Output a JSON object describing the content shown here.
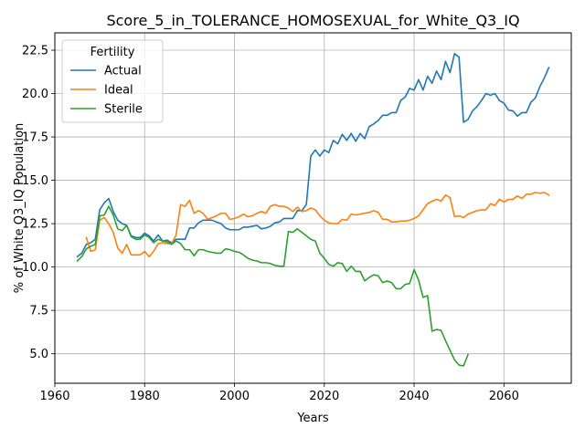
{
  "chart_data": {
    "type": "line",
    "title": "Score_5_in_TOLERANCE_HOMOSEXUAL_for_White_Q3_IQ",
    "xlabel": "Years",
    "ylabel": "% of White Q3_IQ Population",
    "xlim": [
      1960,
      2075
    ],
    "ylim": [
      3.3,
      23.5
    ],
    "xticks": [
      1960,
      1980,
      2000,
      2020,
      2040,
      2060
    ],
    "yticks": [
      5.0,
      7.5,
      10.0,
      12.5,
      15.0,
      17.5,
      20.0,
      22.5
    ],
    "grid": true,
    "legend": {
      "title": "Fertility",
      "location": "upper-left"
    },
    "series": [
      {
        "name": "Actual",
        "color": "#1f77b4",
        "x": [
          1965,
          1966,
          1967,
          1968,
          1969,
          1970,
          1971,
          1972,
          1973,
          1974,
          1975,
          1976,
          1977,
          1978,
          1979,
          1980,
          1981,
          1982,
          1983,
          1984,
          1985,
          1986,
          1987,
          1988,
          1989,
          1990,
          1991,
          1992,
          1993,
          1994,
          1995,
          1996,
          1997,
          1998,
          1999,
          2000,
          2001,
          2002,
          2003,
          2004,
          2005,
          2006,
          2007,
          2008,
          2009,
          2010,
          2011,
          2012,
          2013,
          2014,
          2015,
          2016,
          2017,
          2018,
          2019,
          2020,
          2021,
          2022,
          2023,
          2024,
          2025,
          2026,
          2027,
          2028,
          2029,
          2030,
          2031,
          2032,
          2033,
          2034,
          2035,
          2036,
          2037,
          2038,
          2039,
          2040,
          2041,
          2042,
          2043,
          2044,
          2045,
          2046,
          2047,
          2048,
          2049,
          2050,
          2051,
          2052,
          2053,
          2054,
          2055,
          2056,
          2057,
          2058,
          2059,
          2060,
          2061,
          2062,
          2063,
          2064,
          2065,
          2066,
          2067,
          2068,
          2069,
          2070
        ],
        "values": [
          10.6,
          10.8,
          11.3,
          11.4,
          11.6,
          13.3,
          13.7,
          13.95,
          13.2,
          12.7,
          12.5,
          12.4,
          11.8,
          11.7,
          11.7,
          11.95,
          11.8,
          11.5,
          11.85,
          11.5,
          11.55,
          11.4,
          11.6,
          11.6,
          11.6,
          12.25,
          12.25,
          12.55,
          12.7,
          12.7,
          12.7,
          12.6,
          12.5,
          12.25,
          12.15,
          12.15,
          12.15,
          12.3,
          12.3,
          12.35,
          12.4,
          12.2,
          12.25,
          12.35,
          12.55,
          12.6,
          12.8,
          12.8,
          12.8,
          13.25,
          13.25,
          13.6,
          16.4,
          16.75,
          16.4,
          16.75,
          16.6,
          17.3,
          17.1,
          17.65,
          17.3,
          17.7,
          17.25,
          17.7,
          17.4,
          18.1,
          18.25,
          18.45,
          18.75,
          18.75,
          18.9,
          18.9,
          19.6,
          19.8,
          20.3,
          20.2,
          20.8,
          20.2,
          21.0,
          20.6,
          21.3,
          20.8,
          21.85,
          21.2,
          22.3,
          22.1,
          18.35,
          18.5,
          19.0,
          19.25,
          19.6,
          20.0,
          19.9,
          20.0,
          19.6,
          19.45,
          19.05,
          19.0,
          18.7,
          18.9,
          18.9,
          19.5,
          19.75,
          20.4,
          20.9,
          21.5
        ]
      },
      {
        "name": "Ideal",
        "color": "#ff7f0e",
        "x": [
          1967,
          1968,
          1969,
          1970,
          1971,
          1972,
          1973,
          1974,
          1975,
          1976,
          1977,
          1978,
          1979,
          1980,
          1981,
          1982,
          1983,
          1984,
          1985,
          1986,
          1987,
          1988,
          1989,
          1990,
          1991,
          1992,
          1993,
          1994,
          1995,
          1996,
          1997,
          1998,
          1999,
          2000,
          2001,
          2002,
          2003,
          2004,
          2005,
          2006,
          2007,
          2008,
          2009,
          2010,
          2011,
          2012,
          2013,
          2014,
          2015,
          2016,
          2017,
          2018,
          2019,
          2020,
          2021,
          2022,
          2023,
          2024,
          2025,
          2026,
          2027,
          2028,
          2029,
          2030,
          2031,
          2032,
          2033,
          2034,
          2035,
          2036,
          2037,
          2038,
          2039,
          2040,
          2041,
          2042,
          2043,
          2044,
          2045,
          2046,
          2047,
          2048,
          2049,
          2050,
          2051,
          2052,
          2053,
          2054,
          2055,
          2056,
          2057,
          2058,
          2059,
          2060,
          2061,
          2062,
          2063,
          2064,
          2065,
          2066,
          2067,
          2068,
          2069,
          2070
        ],
        "values": [
          11.7,
          10.9,
          11.0,
          12.7,
          12.85,
          12.5,
          12.0,
          11.1,
          10.8,
          11.3,
          10.7,
          10.7,
          10.7,
          10.9,
          10.6,
          10.9,
          11.35,
          11.4,
          11.35,
          11.35,
          11.85,
          13.6,
          13.5,
          13.85,
          13.1,
          13.25,
          13.1,
          12.75,
          12.85,
          12.95,
          13.1,
          13.1,
          12.75,
          12.8,
          12.9,
          13.05,
          12.9,
          12.95,
          13.1,
          13.2,
          13.1,
          13.5,
          13.6,
          13.5,
          13.5,
          13.4,
          13.2,
          13.45,
          13.2,
          13.25,
          13.4,
          13.3,
          12.95,
          12.7,
          12.55,
          12.5,
          12.5,
          12.75,
          12.7,
          13.05,
          13.0,
          13.05,
          13.1,
          13.15,
          13.25,
          13.15,
          12.75,
          12.75,
          12.6,
          12.6,
          12.65,
          12.65,
          12.7,
          12.8,
          12.95,
          13.3,
          13.65,
          13.8,
          13.9,
          13.8,
          14.15,
          14.0,
          12.9,
          12.95,
          12.85,
          13.05,
          13.15,
          13.25,
          13.3,
          13.3,
          13.65,
          13.55,
          13.9,
          13.75,
          13.9,
          13.9,
          14.1,
          13.95,
          14.2,
          14.2,
          14.3,
          14.25,
          14.3,
          14.15
        ]
      },
      {
        "name": "Sterile",
        "color": "#2ca02c",
        "x": [
          1965,
          1966,
          1967,
          1968,
          1969,
          1970,
          1971,
          1972,
          1973,
          1974,
          1975,
          1976,
          1977,
          1978,
          1979,
          1980,
          1981,
          1982,
          1983,
          1984,
          1985,
          1986,
          1987,
          1988,
          1989,
          1990,
          1991,
          1992,
          1993,
          1994,
          1995,
          1996,
          1997,
          1998,
          1999,
          2000,
          2001,
          2002,
          2003,
          2004,
          2005,
          2006,
          2007,
          2008,
          2009,
          2010,
          2011,
          2012,
          2013,
          2014,
          2015,
          2016,
          2017,
          2018,
          2019,
          2020,
          2021,
          2022,
          2023,
          2024,
          2025,
          2026,
          2027,
          2028,
          2029,
          2030,
          2031,
          2032,
          2033,
          2034,
          2035,
          2036,
          2037,
          2038,
          2039,
          2040,
          2041,
          2042,
          2043,
          2044,
          2045,
          2046,
          2047,
          2048,
          2049,
          2050,
          2051,
          2052
        ],
        "values": [
          10.35,
          10.6,
          11.05,
          11.2,
          11.3,
          12.95,
          13.0,
          13.5,
          13.0,
          12.2,
          12.1,
          12.4,
          11.75,
          11.6,
          11.6,
          11.85,
          11.7,
          11.4,
          11.6,
          11.5,
          11.45,
          11.3,
          11.5,
          11.35,
          11.0,
          11.0,
          10.65,
          11.0,
          11.0,
          10.9,
          10.85,
          10.8,
          10.8,
          11.05,
          11.0,
          10.9,
          10.85,
          10.7,
          10.5,
          10.4,
          10.35,
          10.25,
          10.25,
          10.2,
          10.1,
          10.05,
          10.05,
          12.05,
          12.0,
          12.2,
          12.0,
          11.8,
          11.6,
          11.5,
          10.8,
          10.5,
          10.15,
          10.05,
          10.25,
          10.2,
          9.75,
          10.05,
          9.75,
          9.75,
          9.2,
          9.4,
          9.55,
          9.5,
          9.1,
          9.2,
          9.1,
          8.75,
          8.75,
          9.0,
          9.05,
          9.85,
          9.25,
          8.25,
          8.35,
          6.3,
          6.4,
          6.35,
          5.75,
          5.2,
          4.65,
          4.35,
          4.3,
          4.95
        ]
      }
    ]
  }
}
